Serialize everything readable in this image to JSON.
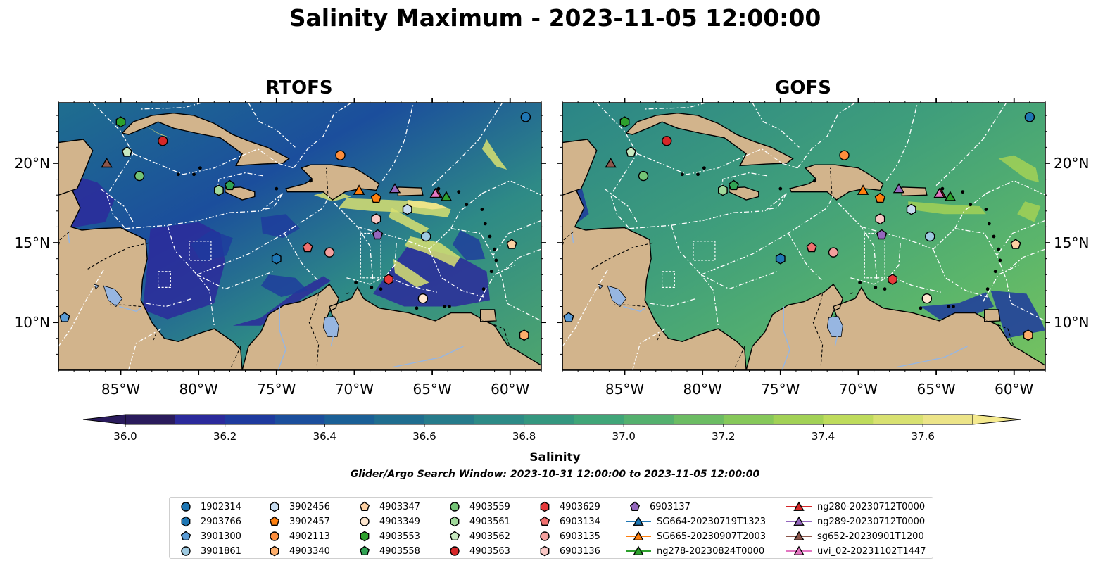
{
  "suptitle": "Salinity Maximum - 2023-11-05 12:00:00",
  "panels": [
    {
      "title": "RTOFS",
      "field": "rtofs"
    },
    {
      "title": "GOFS",
      "field": "gofs"
    }
  ],
  "map_extent": {
    "lon_min": -89,
    "lon_max": -58,
    "lat_min": 7,
    "lat_max": 23.8
  },
  "lon_ticks": [
    {
      "value": -85,
      "label": "85°W"
    },
    {
      "value": -80,
      "label": "80°W"
    },
    {
      "value": -75,
      "label": "75°W"
    },
    {
      "value": -70,
      "label": "70°W"
    },
    {
      "value": -65,
      "label": "65°W"
    },
    {
      "value": -60,
      "label": "60°W"
    }
  ],
  "lat_ticks": [
    {
      "value": 20,
      "label": "20°N"
    },
    {
      "value": 15,
      "label": "15°N"
    },
    {
      "value": 10,
      "label": "10°N"
    }
  ],
  "colors": {
    "land": "#d2b48c",
    "lakes": "#97b6e1",
    "ocean_low": "#2a1a6e",
    "eez_lines": "#ffffff"
  },
  "colorbar": {
    "label": "Salinity",
    "min": 36.0,
    "max": 37.7,
    "step": 0.1,
    "ticks": [
      "36.0",
      "36.2",
      "36.4",
      "36.6",
      "36.8",
      "37.0",
      "37.2",
      "37.4",
      "37.6"
    ],
    "colors": [
      "#2a1b5c",
      "#2b2a9b",
      "#1e3a9e",
      "#1b4e9c",
      "#1a5f96",
      "#1f6d8f",
      "#267b8b",
      "#2d8a86",
      "#34977f",
      "#40a578",
      "#54b06e",
      "#6cbc63",
      "#86c85a",
      "#a2d156",
      "#bedb5c",
      "#d8e171",
      "#ece488"
    ]
  },
  "search_window": "Glider/Argo Search Window: 2023-10-31 12:00:00 to 2023-11-05 12:00:00",
  "legend": [
    {
      "label": "1902314",
      "marker": "circle",
      "color": "#1f77b4",
      "lon": -59.0,
      "lat": 22.9
    },
    {
      "label": "2903766",
      "marker": "hexagon",
      "color": "#1f77b4",
      "lon": -75.0,
      "lat": 14.0
    },
    {
      "label": "3901300",
      "marker": "pentagon",
      "color": "#5a9bd5",
      "lon": -88.6,
      "lat": 10.3
    },
    {
      "label": "3901861",
      "marker": "circle",
      "color": "#9ecae1",
      "lon": -65.4,
      "lat": 15.4
    },
    {
      "label": "3902456",
      "marker": "hexagon",
      "color": "#c6dbef",
      "lon": -66.6,
      "lat": 17.1
    },
    {
      "label": "3902457",
      "marker": "pentagon",
      "color": "#ff7f0e",
      "lon": -68.6,
      "lat": 17.8
    },
    {
      "label": "4902113",
      "marker": "circle",
      "color": "#fd8d3c",
      "lon": -70.9,
      "lat": 20.5
    },
    {
      "label": "4903340",
      "marker": "hexagon",
      "color": "#fdae6b",
      "lon": -59.1,
      "lat": 9.2
    },
    {
      "label": "4903347",
      "marker": "pentagon",
      "color": "#fdd0a2",
      "lon": -59.9,
      "lat": 14.9
    },
    {
      "label": "4903349",
      "marker": "circle",
      "color": "#fee6ce",
      "lon": -65.6,
      "lat": 11.5
    },
    {
      "label": "4903553",
      "marker": "hexagon",
      "color": "#2ca02c",
      "lon": -85.0,
      "lat": 22.6
    },
    {
      "label": "4903558",
      "marker": "pentagon",
      "color": "#31a354",
      "lon": -78.0,
      "lat": 18.6
    },
    {
      "label": "4903559",
      "marker": "circle",
      "color": "#74c476",
      "lon": -83.8,
      "lat": 19.2
    },
    {
      "label": "4903561",
      "marker": "hexagon",
      "color": "#a1d99b",
      "lon": -78.7,
      "lat": 18.3
    },
    {
      "label": "4903562",
      "marker": "pentagon",
      "color": "#c7e9c0",
      "lon": -84.6,
      "lat": 20.7
    },
    {
      "label": "4903563",
      "marker": "circle",
      "color": "#d62728",
      "lon": -82.3,
      "lat": 21.4
    },
    {
      "label": "4903629",
      "marker": "hexagon",
      "color": "#e6393a",
      "lon": -67.8,
      "lat": 12.7
    },
    {
      "label": "6903134",
      "marker": "pentagon",
      "color": "#f0706f",
      "lon": -73.0,
      "lat": 14.7
    },
    {
      "label": "6903135",
      "marker": "circle",
      "color": "#f4a09e",
      "lon": -71.6,
      "lat": 14.4
    },
    {
      "label": "6903136",
      "marker": "hexagon",
      "color": "#f9c7c4",
      "lon": -68.6,
      "lat": 16.5
    },
    {
      "label": "6903137",
      "marker": "pentagon",
      "color": "#9467bd",
      "lon": -68.5,
      "lat": 15.5
    },
    {
      "label": "SG664-20230719T1323",
      "marker": "triangle",
      "color": "#1f77b4",
      "line": true,
      "lon": -69.7,
      "lat": 18.3
    },
    {
      "label": "SG665-20230907T2003",
      "marker": "triangle",
      "color": "#ff7f0e",
      "line": true,
      "lon": -69.7,
      "lat": 18.3
    },
    {
      "label": "ng278-20230824T0000",
      "marker": "triangle",
      "color": "#2ca02c",
      "line": true,
      "lon": -64.1,
      "lat": 17.9
    },
    {
      "label": "ng280-20230712T0000",
      "marker": "triangle",
      "color": "#d62728",
      "line": true,
      "lon": -64.7,
      "lat": 18.1
    },
    {
      "label": "ng289-20230712T0000",
      "marker": "triangle",
      "color": "#9467bd",
      "line": true,
      "lon": -67.4,
      "lat": 18.4
    },
    {
      "label": "sg652-20230901T1200",
      "marker": "triangle",
      "color": "#8c564b",
      "line": true,
      "lon": -85.9,
      "lat": 20.0
    },
    {
      "label": "uvi_02-20231102T1447",
      "marker": "triangle",
      "color": "#e377c2",
      "line": true,
      "lon": -64.8,
      "lat": 18.1
    }
  ]
}
